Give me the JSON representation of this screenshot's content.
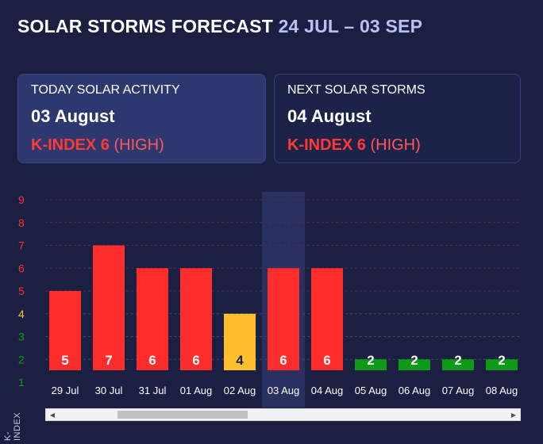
{
  "header": {
    "title": "SOLAR STORMS FORECAST",
    "range": "24 JUL – 03 SEP"
  },
  "today_card": {
    "label": "TODAY SOLAR ACTIVITY",
    "date": "03 August",
    "kindex_label": "K-INDEX 6",
    "kindex_level": "(HIGH)"
  },
  "next_card": {
    "label": "NEXT SOLAR STORMS",
    "date": "04 August",
    "kindex_label": "K-INDEX 6",
    "kindex_level": "(HIGH)"
  },
  "colors": {
    "high": "#ff2c2c",
    "medium": "#ffc02e",
    "low": "#0c9b16",
    "bg": "#1b2043"
  },
  "chart_data": {
    "type": "bar",
    "categories": [
      "29 Jul",
      "30 Jul",
      "31 Jul",
      "01 Aug",
      "02 Aug",
      "03 Aug",
      "04 Aug",
      "05 Aug",
      "06 Aug",
      "07 Aug",
      "08 Aug"
    ],
    "values": [
      5,
      7,
      6,
      6,
      4,
      6,
      6,
      2,
      2,
      2,
      2
    ],
    "highlighted": "03 Aug",
    "ylabel": "K-INDEX",
    "ylim": [
      1,
      9
    ],
    "yticks": [
      "1",
      "2",
      "3",
      "4",
      "5",
      "6",
      "7",
      "8",
      "9"
    ],
    "grid": true
  }
}
